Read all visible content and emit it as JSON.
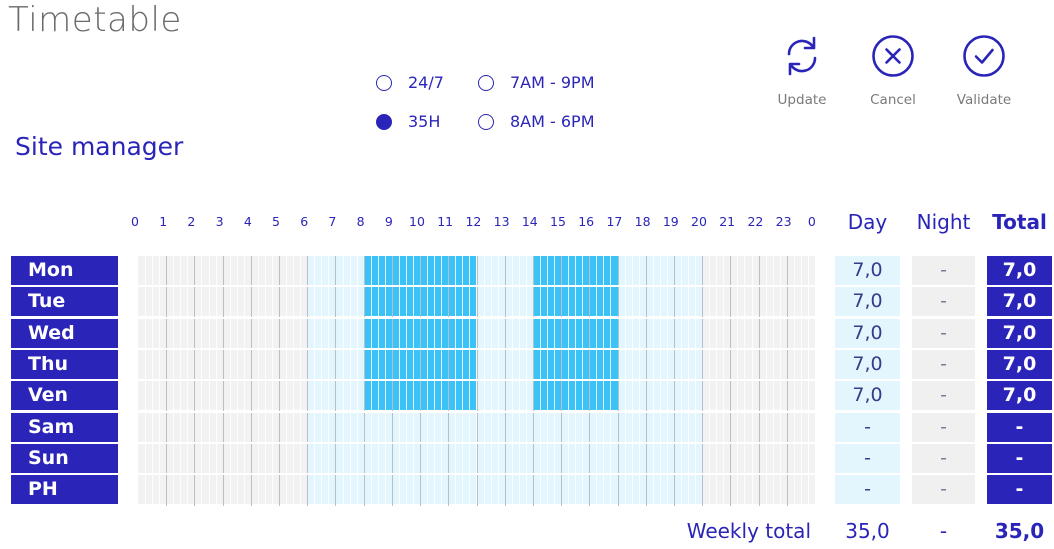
{
  "title": "Timetable",
  "subtitle": "Site manager",
  "presets": [
    {
      "label": "24/7",
      "selected": false
    },
    {
      "label": "7AM - 9PM",
      "selected": false
    },
    {
      "label": "35H",
      "selected": true
    },
    {
      "label": "8AM - 6PM",
      "selected": false
    }
  ],
  "actions": {
    "update": "Update",
    "cancel": "Cancel",
    "validate": "Validate"
  },
  "hours": [
    "0",
    "1",
    "2",
    "3",
    "4",
    "5",
    "6",
    "7",
    "8",
    "9",
    "10",
    "11",
    "12",
    "13",
    "14",
    "15",
    "16",
    "17",
    "18",
    "19",
    "20",
    "21",
    "22",
    "23",
    "0"
  ],
  "columns": {
    "day": "Day",
    "night": "Night",
    "total": "Total"
  },
  "daytime_hours": [
    6,
    20
  ],
  "rows": [
    {
      "label": "Mon",
      "day": "7,0",
      "night": "-",
      "total": "7,0",
      "slots": [
        [
          8,
          12
        ],
        [
          14,
          17
        ]
      ]
    },
    {
      "label": "Tue",
      "day": "7,0",
      "night": "-",
      "total": "7,0",
      "slots": [
        [
          8,
          12
        ],
        [
          14,
          17
        ]
      ]
    },
    {
      "label": "Wed",
      "day": "7,0",
      "night": "-",
      "total": "7,0",
      "slots": [
        [
          8,
          12
        ],
        [
          14,
          17
        ]
      ]
    },
    {
      "label": "Thu",
      "day": "7,0",
      "night": "-",
      "total": "7,0",
      "slots": [
        [
          8,
          12
        ],
        [
          14,
          17
        ]
      ]
    },
    {
      "label": "Ven",
      "day": "7,0",
      "night": "-",
      "total": "7,0",
      "slots": [
        [
          8,
          12
        ],
        [
          14,
          17
        ]
      ]
    },
    {
      "label": "Sam",
      "day": "-",
      "night": "-",
      "total": "-",
      "slots": []
    },
    {
      "label": "Sun",
      "day": "-",
      "night": "-",
      "total": "-",
      "slots": []
    },
    {
      "label": "PH",
      "day": "-",
      "night": "-",
      "total": "-",
      "slots": []
    }
  ],
  "weekly": {
    "label": "Weekly total",
    "day": "35,0",
    "night": "-",
    "total": "35,0"
  },
  "colors": {
    "accent": "#2a25b8",
    "slot_on": "#3bc2f6",
    "slot_day": "#e3f6fd",
    "slot_off": "#f2f2f2"
  }
}
